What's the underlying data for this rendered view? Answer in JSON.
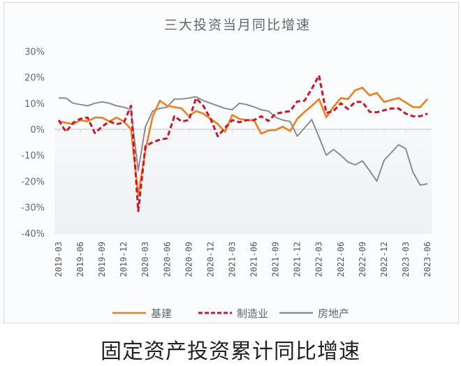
{
  "chart_data": {
    "type": "line",
    "title": "三大投资当月同比增速",
    "caption": "固定资产投资累计同比增速",
    "xlabel": "",
    "ylabel": "",
    "ylim": [
      -40,
      30
    ],
    "yticks": [
      30,
      20,
      10,
      0,
      -10,
      -20,
      -30,
      -40
    ],
    "ytick_labels": [
      "30%",
      "20%",
      "10%",
      "0%",
      "-10%",
      "-20%",
      "-30%",
      "-40%"
    ],
    "x_start": "2019-03",
    "x_end": "2023-06",
    "xtick_labels": [
      "2019-03",
      "2019-06",
      "2019-09",
      "2019-12",
      "2020-03",
      "2020-06",
      "2020-09",
      "2020-12",
      "2021-03",
      "2021-06",
      "2021-09",
      "2021-12",
      "2022-03",
      "2022-06",
      "2022-09",
      "2022-12",
      "2023-03",
      "2023-06"
    ],
    "legend_position": "bottom",
    "grid": false,
    "series": [
      {
        "name": "基建",
        "color": "#f07f1e",
        "dash": "solid",
        "values": [
          3,
          2.5,
          2,
          3.5,
          3,
          4.5,
          4.5,
          3,
          4.5,
          3,
          0,
          -25.5,
          -8,
          5,
          11,
          9,
          8.5,
          8,
          5,
          7,
          6,
          4,
          2,
          -1,
          5.5,
          4,
          3.5,
          3.5,
          -1.7,
          -0.5,
          -0.3,
          1,
          -0.7,
          4,
          6.7,
          9,
          11.6,
          4.6,
          8.6,
          12,
          11.6,
          15,
          16,
          13,
          14,
          10.5,
          11.3,
          12,
          10.3,
          8.5,
          8.5,
          11.6
        ]
      },
      {
        "name": "制造业",
        "color": "#d0142c",
        "dash": "dashed",
        "values": [
          3.5,
          -1,
          2.5,
          4,
          4.5,
          -1.5,
          1,
          3,
          2,
          2.5,
          9,
          -31.5,
          -6.5,
          -5,
          -4,
          -3.5,
          5,
          3,
          3.5,
          12,
          9,
          4,
          -2.7,
          0.5,
          3.5,
          2.7,
          3.5,
          3.5,
          5,
          3.2,
          6,
          6.5,
          7,
          10.7,
          11,
          15.6,
          20.7,
          6.3,
          7,
          10,
          7.8,
          10.5,
          10.5,
          6.7,
          6.5,
          7.3,
          8,
          8,
          6,
          5,
          5,
          6
        ]
      },
      {
        "name": "房地产",
        "color": "#8c8c8c",
        "dash": "solid",
        "values": [
          12,
          12,
          10,
          9.5,
          9,
          10,
          10.5,
          10,
          9,
          8.5,
          7.5,
          -16,
          1,
          7,
          8,
          8.5,
          11.6,
          11.6,
          12,
          12.5,
          11,
          10,
          9,
          8,
          7.5,
          10,
          9.5,
          8.6,
          7.5,
          7,
          4.6,
          3.5,
          3,
          -2.7,
          0.5,
          3.7,
          -3,
          -10,
          -7.8,
          -10,
          -12.6,
          -13.7,
          -12.2,
          -16,
          -20,
          -12,
          -9,
          -6,
          -7.5,
          -16.6,
          -21.5,
          -21
        ]
      }
    ]
  }
}
